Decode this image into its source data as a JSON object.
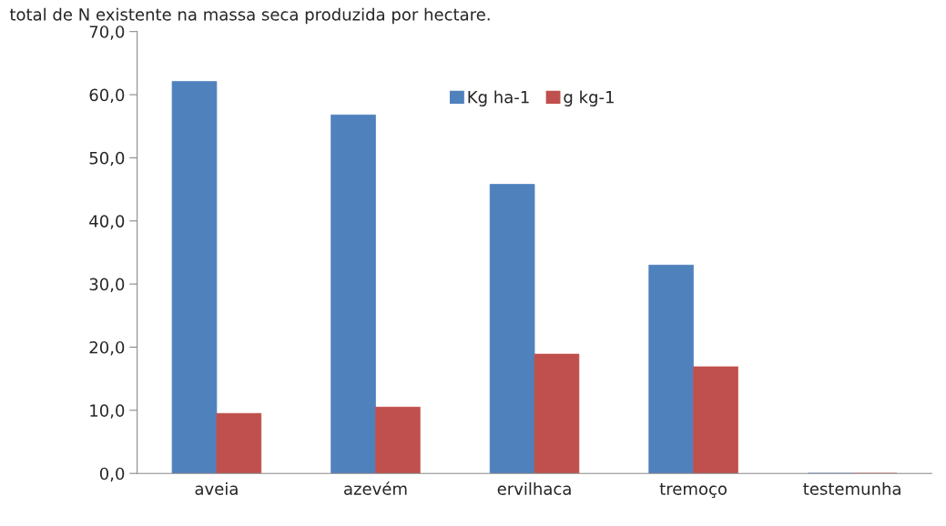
{
  "chart_data": {
    "type": "bar",
    "title": "total de N existente na massa seca produzida por hectare.",
    "categories": [
      "aveia",
      "azevém",
      "ervilhaca",
      "tremoço",
      "testemunha"
    ],
    "series": [
      {
        "name": "Kg ha-1",
        "color": "#4f81bd",
        "values": [
          62.1,
          56.8,
          45.8,
          33.0,
          0
        ]
      },
      {
        "name": "g kg-1",
        "color": "#c0504d",
        "values": [
          9.5,
          10.5,
          18.9,
          16.9,
          0
        ]
      }
    ],
    "ylim": [
      0,
      70
    ],
    "yticks": [
      {
        "value": 0,
        "label": "0,0"
      },
      {
        "value": 10,
        "label": "10,0"
      },
      {
        "value": 20,
        "label": "20,0"
      },
      {
        "value": 30,
        "label": "30,0"
      },
      {
        "value": 40,
        "label": "40,0"
      },
      {
        "value": 50,
        "label": "50,0"
      },
      {
        "value": 60,
        "label": "60,0"
      },
      {
        "value": 70,
        "label": "70,0"
      }
    ],
    "grid": false,
    "legend": "top right"
  }
}
